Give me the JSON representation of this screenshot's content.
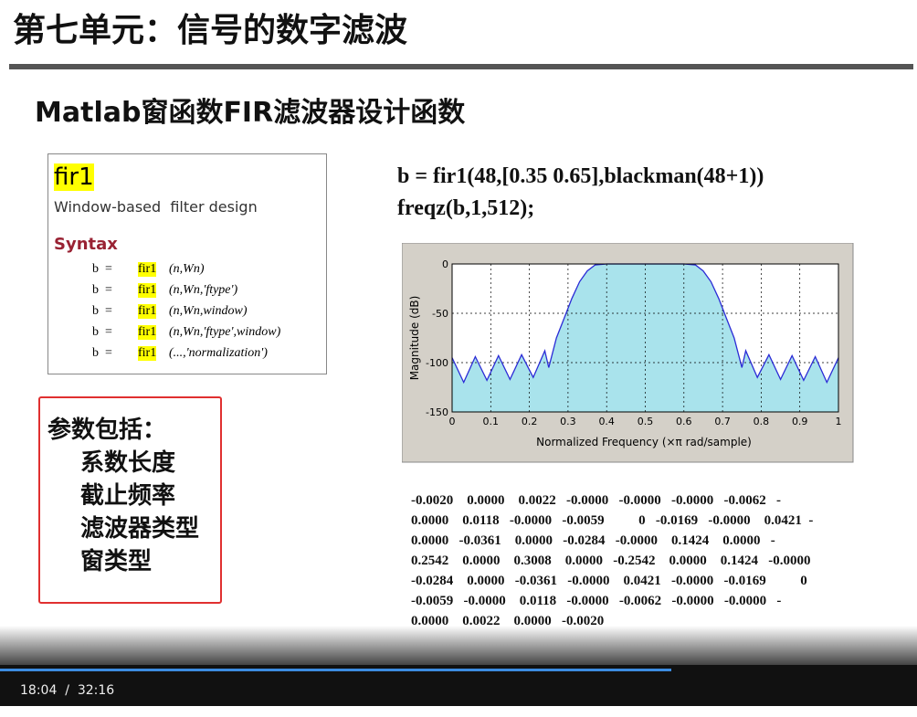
{
  "header": {
    "title": "第七单元：信号的数字滤波"
  },
  "subtitle": "Matlab窗函数FIR滤波器设计函数",
  "doc": {
    "name": "fir1",
    "description": "Window-based  filter design",
    "syntax_heading": "Syntax",
    "syntax": [
      [
        "b  =",
        "fir1",
        "(n,Wn)"
      ],
      [
        "b  =",
        "fir1",
        "(n,Wn,'ftype')"
      ],
      [
        "b  =",
        "fir1",
        "(n,Wn,window)"
      ],
      [
        "b  =",
        "fir1",
        "(n,Wn,'ftype',window)"
      ],
      [
        "b  =",
        "fir1",
        "(...,'normalization')"
      ]
    ]
  },
  "params": {
    "heading": "参数包括：",
    "items": [
      "系数长度",
      "截止频率",
      "滤波器类型",
      "窗类型"
    ]
  },
  "code": [
    "b = fir1(48,[0.35 0.65],blackman(48+1))",
    "freqz(b,1,512);"
  ],
  "chart_data": {
    "type": "area",
    "xlabel": "Normalized Frequency  (×π rad/sample)",
    "ylabel": "Magnitude (dB)",
    "x": [
      0,
      0.03,
      0.06,
      0.09,
      0.12,
      0.15,
      0.18,
      0.21,
      0.24,
      0.25,
      0.27,
      0.29,
      0.31,
      0.33,
      0.35,
      0.37,
      0.4,
      0.45,
      0.5,
      0.55,
      0.6,
      0.63,
      0.65,
      0.67,
      0.69,
      0.71,
      0.73,
      0.75,
      0.76,
      0.79,
      0.82,
      0.85,
      0.88,
      0.91,
      0.94,
      0.97,
      1
    ],
    "values": [
      -95,
      -120,
      -94,
      -118,
      -93,
      -117,
      -92,
      -115,
      -88,
      -105,
      -75,
      -55,
      -35,
      -18,
      -7,
      -1,
      0,
      0,
      0,
      0,
      0,
      -1,
      -7,
      -18,
      -35,
      -55,
      -75,
      -105,
      -88,
      -115,
      -92,
      -117,
      -93,
      -118,
      -94,
      -120,
      -95
    ],
    "xlim": [
      0,
      1
    ],
    "ylim": [
      -150,
      0
    ],
    "xticks": [
      0,
      0.1,
      0.2,
      0.3,
      0.4,
      0.5,
      0.6,
      0.7,
      0.8,
      0.9,
      1
    ],
    "yticks": [
      0,
      -50,
      -100,
      -150
    ],
    "grid": true,
    "color": "#2b2bd6",
    "fill": "#a9e3ec"
  },
  "coefficients": [
    "-0.0020    0.0000    0.0022   -0.0000   -0.0000   -0.0000   -0.0062   -",
    "0.0000    0.0118   -0.0000   -0.0059          0   -0.0169   -0.0000    0.0421  -",
    "0.0000   -0.0361    0.0000   -0.0284   -0.0000    0.1424    0.0000   -",
    "0.2542    0.0000    0.3008    0.0000   -0.2542    0.0000    0.1424   -0.0000",
    "-0.0284    0.0000   -0.0361   -0.0000    0.0421   -0.0000   -0.0169          0",
    "-0.0059   -0.0000    0.0118   -0.0000   -0.0062   -0.0000   -0.0000   -",
    "0.0000    0.0022    0.0000   -0.0020"
  ],
  "player": {
    "time_display": "18:04  /  32:16"
  }
}
